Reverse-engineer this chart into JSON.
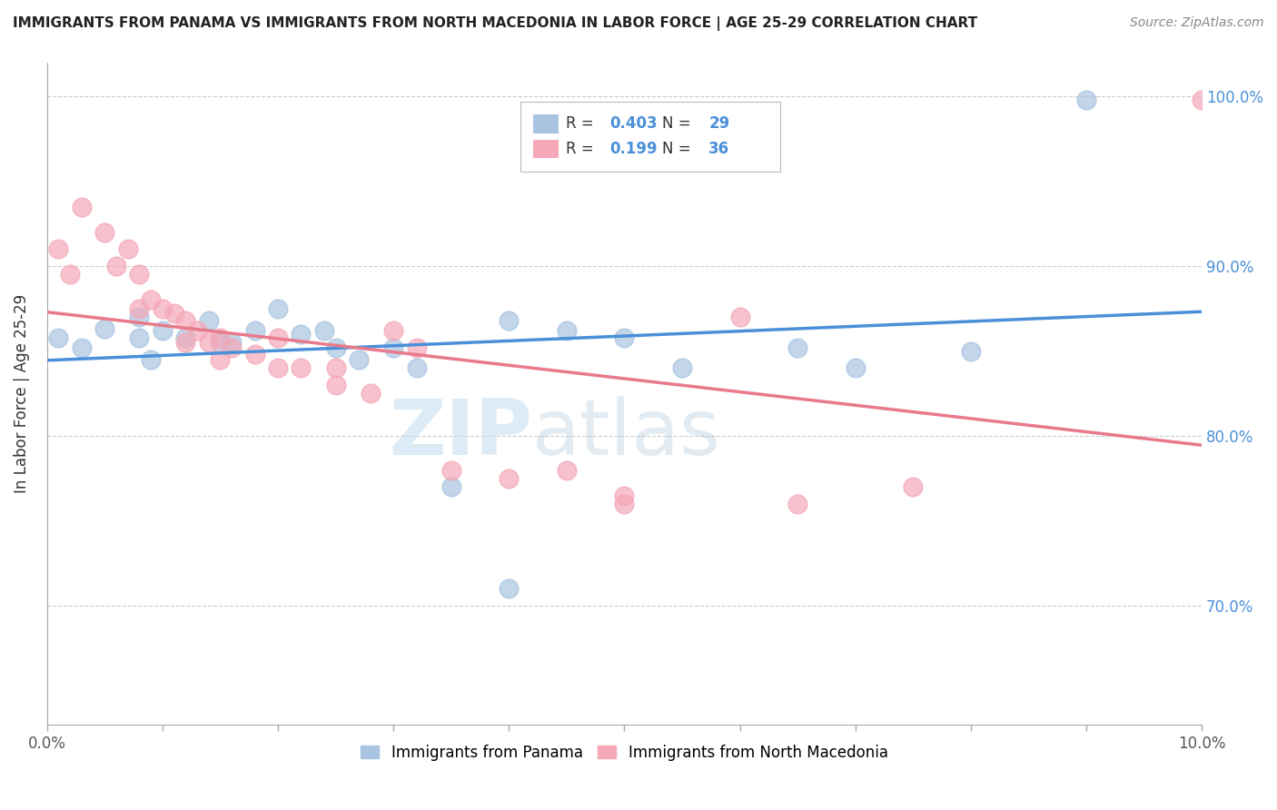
{
  "title": "IMMIGRANTS FROM PANAMA VS IMMIGRANTS FROM NORTH MACEDONIA IN LABOR FORCE | AGE 25-29 CORRELATION CHART",
  "source": "Source: ZipAtlas.com",
  "ylabel": "In Labor Force | Age 25-29",
  "panama_R": 0.403,
  "panama_N": 29,
  "macedonia_R": 0.199,
  "macedonia_N": 36,
  "panama_color": "#a8c4e0",
  "macedonia_color": "#f4a8b8",
  "panama_line_color": "#4a90d9",
  "macedonia_line_color": "#e87a8a",
  "panama_scatter": [
    [
      0.001,
      0.858
    ],
    [
      0.003,
      0.852
    ],
    [
      0.005,
      0.863
    ],
    [
      0.008,
      0.87
    ],
    [
      0.008,
      0.858
    ],
    [
      0.009,
      0.845
    ],
    [
      0.01,
      0.862
    ],
    [
      0.012,
      0.858
    ],
    [
      0.014,
      0.868
    ],
    [
      0.015,
      0.855
    ],
    [
      0.016,
      0.855
    ],
    [
      0.018,
      0.862
    ],
    [
      0.02,
      0.875
    ],
    [
      0.022,
      0.86
    ],
    [
      0.024,
      0.862
    ],
    [
      0.025,
      0.852
    ],
    [
      0.027,
      0.845
    ],
    [
      0.03,
      0.852
    ],
    [
      0.032,
      0.84
    ],
    [
      0.04,
      0.868
    ],
    [
      0.045,
      0.862
    ],
    [
      0.05,
      0.858
    ],
    [
      0.055,
      0.84
    ],
    [
      0.065,
      0.852
    ],
    [
      0.07,
      0.84
    ],
    [
      0.08,
      0.85
    ],
    [
      0.035,
      0.77
    ],
    [
      0.04,
      0.71
    ],
    [
      0.09,
      0.998
    ]
  ],
  "macedonia_scatter": [
    [
      0.001,
      0.91
    ],
    [
      0.002,
      0.895
    ],
    [
      0.003,
      0.935
    ],
    [
      0.005,
      0.92
    ],
    [
      0.006,
      0.9
    ],
    [
      0.007,
      0.91
    ],
    [
      0.008,
      0.895
    ],
    [
      0.008,
      0.875
    ],
    [
      0.009,
      0.88
    ],
    [
      0.01,
      0.875
    ],
    [
      0.011,
      0.872
    ],
    [
      0.012,
      0.868
    ],
    [
      0.012,
      0.855
    ],
    [
      0.013,
      0.862
    ],
    [
      0.014,
      0.855
    ],
    [
      0.015,
      0.858
    ],
    [
      0.015,
      0.845
    ],
    [
      0.016,
      0.852
    ],
    [
      0.018,
      0.848
    ],
    [
      0.02,
      0.84
    ],
    [
      0.02,
      0.858
    ],
    [
      0.022,
      0.84
    ],
    [
      0.025,
      0.84
    ],
    [
      0.025,
      0.83
    ],
    [
      0.028,
      0.825
    ],
    [
      0.03,
      0.862
    ],
    [
      0.032,
      0.852
    ],
    [
      0.035,
      0.78
    ],
    [
      0.04,
      0.775
    ],
    [
      0.045,
      0.78
    ],
    [
      0.05,
      0.765
    ],
    [
      0.05,
      0.76
    ],
    [
      0.06,
      0.87
    ],
    [
      0.065,
      0.76
    ],
    [
      0.075,
      0.77
    ],
    [
      0.1,
      0.998
    ]
  ],
  "watermark_zip": "ZIP",
  "watermark_atlas": "atlas",
  "xlim": [
    0.0,
    0.1
  ],
  "ylim": [
    0.63,
    1.02
  ],
  "y_ticks": [
    0.7,
    0.8,
    0.9,
    1.0
  ],
  "x_tick_count": 11
}
